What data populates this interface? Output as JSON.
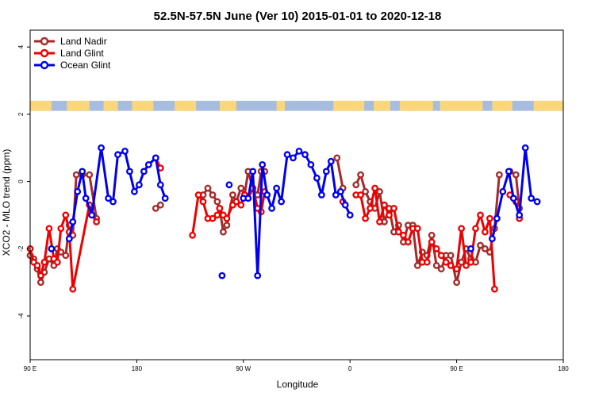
{
  "chart_data": {
    "type": "line",
    "title": "52.5N-57.5N June (Ver 10)   2015-01-01 to 2020-12-18",
    "xlabel": "Longitude",
    "ylabel": "XCO2 - MLO trend (ppm)",
    "x_ticks": [
      {
        "value": 90,
        "label": "90 E"
      },
      {
        "value": 180,
        "label": "180"
      },
      {
        "value": 270,
        "label": "90 W"
      },
      {
        "value": 360,
        "label": "0"
      },
      {
        "value": 450,
        "label": "90 E"
      },
      {
        "value": 540,
        "label": "180"
      }
    ],
    "y_ticks": [
      {
        "value": -4,
        "label": "-4"
      },
      {
        "value": -2,
        "label": "-2"
      },
      {
        "value": 0,
        "label": "0"
      },
      {
        "value": 2,
        "label": "2"
      },
      {
        "value": 4,
        "label": "4"
      }
    ],
    "xlim": [
      90,
      540
    ],
    "ylim": [
      -5.3,
      4.5
    ],
    "grid": false,
    "legend_position": "top-left",
    "land_mask_strip": {
      "y_range": [
        2.1,
        2.4
      ],
      "ocean_color": "#a6bde0",
      "land_color": "#fcd67a"
    },
    "series": [
      {
        "name": "Land Nadir",
        "color": "#a52a2a",
        "segments": [
          [
            [
              90,
              -2.2
            ],
            [
              93,
              -2.3
            ],
            [
              96,
              -2.6
            ],
            [
              99,
              -3.0
            ],
            [
              102,
              -2.7
            ],
            [
              106,
              -2.3
            ],
            [
              110,
              -2.5
            ],
            [
              113,
              -2.0
            ],
            [
              116,
              -2.1
            ],
            [
              120,
              -2.2
            ],
            [
              123,
              -1.3
            ],
            [
              126,
              -1.6
            ],
            [
              129,
              0.2
            ],
            [
              134,
              0.2
            ],
            [
              140,
              0.2
            ],
            [
              146,
              -1.1
            ]
          ],
          [
            [
              196,
              -0.8
            ],
            [
              200,
              -0.7
            ]
          ],
          [
            [
              236,
              -0.4
            ],
            [
              240,
              -0.2
            ],
            [
              244,
              -0.4
            ],
            [
              248,
              -0.6
            ],
            [
              250,
              -0.8
            ],
            [
              253,
              -1.5
            ],
            [
              256,
              -1.3
            ],
            [
              261,
              -0.4
            ],
            [
              264,
              -0.6
            ],
            [
              268,
              -0.2
            ],
            [
              271,
              -0.4
            ],
            [
              274,
              0.3
            ],
            [
              278,
              -0.2
            ],
            [
              282,
              -0.4
            ],
            [
              285,
              0.3
            ],
            [
              288,
              0.3
            ]
          ],
          [
            [
              349,
              0.7
            ],
            [
              354,
              -0.2
            ]
          ],
          [
            [
              365,
              -0.1
            ],
            [
              369,
              0.2
            ],
            [
              373,
              -0.3
            ],
            [
              377,
              -0.6
            ],
            [
              381,
              -0.8
            ],
            [
              385,
              -0.3
            ],
            [
              389,
              -1.2
            ],
            [
              393,
              -0.8
            ],
            [
              397,
              -1.5
            ],
            [
              401,
              -1.3
            ],
            [
              405,
              -1.8
            ],
            [
              409,
              -1.3
            ],
            [
              413,
              -1.3
            ],
            [
              417,
              -2.5
            ],
            [
              421,
              -2.1
            ],
            [
              425,
              -2.2
            ],
            [
              429,
              -1.6
            ],
            [
              433,
              -2.5
            ],
            [
              437,
              -2.6
            ],
            [
              441,
              -2.2
            ],
            [
              445,
              -2.2
            ],
            [
              450,
              -3.0
            ],
            [
              454,
              -2.4
            ],
            [
              458,
              -2.0
            ],
            [
              462,
              -2.3
            ],
            [
              466,
              -2.4
            ],
            [
              470,
              -1.9
            ],
            [
              474,
              -2.0
            ],
            [
              478,
              -2.1
            ],
            [
              482,
              -1.4
            ],
            [
              486,
              0.2
            ]
          ],
          [
            [
              495,
              0.3
            ],
            [
              500,
              0.2
            ],
            [
              503,
              -0.8
            ]
          ]
        ]
      },
      {
        "name": "Land Glint",
        "color": "#ee0000",
        "segments": [
          [
            [
              90,
              -2.0
            ],
            [
              93,
              -2.4
            ],
            [
              96,
              -2.5
            ],
            [
              99,
              -2.8
            ],
            [
              102,
              -2.4
            ],
            [
              106,
              -1.4
            ],
            [
              110,
              -2.3
            ],
            [
              113,
              -2.4
            ],
            [
              116,
              -1.4
            ],
            [
              120,
              -1.0
            ],
            [
              123,
              -1.5
            ],
            [
              126,
              -3.2
            ],
            [
              140,
              -0.7
            ],
            [
              146,
              -1.2
            ]
          ],
          [
            [
              196,
              0.7
            ],
            [
              200,
              0.4
            ]
          ],
          [
            [
              227,
              -1.6
            ],
            [
              232,
              -0.4
            ],
            [
              236,
              -0.6
            ],
            [
              240,
              -1.1
            ],
            [
              244,
              -1.1
            ],
            [
              248,
              -1.0
            ],
            [
              250,
              -0.8
            ],
            [
              253,
              -1.0
            ],
            [
              256,
              -1.1
            ],
            [
              261,
              -0.7
            ],
            [
              264,
              -0.6
            ],
            [
              268,
              -0.7
            ],
            [
              271,
              -0.4
            ],
            [
              274,
              -0.5
            ],
            [
              278,
              -0.2
            ],
            [
              282,
              -0.8
            ],
            [
              285,
              -0.9
            ],
            [
              288,
              -0.3
            ]
          ],
          [
            [
              354,
              -0.6
            ]
          ],
          [
            [
              365,
              -0.4
            ],
            [
              369,
              -0.4
            ],
            [
              373,
              -1.1
            ],
            [
              377,
              -0.8
            ],
            [
              381,
              -0.2
            ],
            [
              385,
              -1.2
            ],
            [
              389,
              -0.7
            ],
            [
              393,
              -1.0
            ],
            [
              397,
              -0.8
            ],
            [
              401,
              -1.5
            ],
            [
              405,
              -1.6
            ],
            [
              409,
              -1.8
            ],
            [
              413,
              -1.4
            ],
            [
              417,
              -1.4
            ],
            [
              421,
              -2.4
            ],
            [
              425,
              -2.4
            ],
            [
              429,
              -1.8
            ],
            [
              433,
              -2.0
            ],
            [
              437,
              -2.2
            ],
            [
              441,
              -2.4
            ],
            [
              445,
              -2.5
            ],
            [
              450,
              -2.6
            ],
            [
              454,
              -1.4
            ],
            [
              458,
              -2.5
            ],
            [
              462,
              -2.4
            ],
            [
              466,
              -1.4
            ],
            [
              470,
              -1.0
            ],
            [
              474,
              -1.5
            ],
            [
              478,
              -1.1
            ],
            [
              482,
              -3.2
            ]
          ],
          [
            [
              495,
              -0.4
            ],
            [
              500,
              -0.6
            ],
            [
              503,
              -1.1
            ]
          ]
        ]
      },
      {
        "name": "Ocean Glint",
        "color": "#0000ee",
        "segments": [
          [
            [
              108,
              -2.0
            ]
          ],
          [
            [
              123,
              -1.7
            ],
            [
              126,
              -1.2
            ],
            [
              130,
              -0.3
            ],
            [
              134,
              0.3
            ],
            [
              137,
              -0.5
            ],
            [
              142,
              -1.0
            ],
            [
              150,
              1.0
            ],
            [
              156,
              -0.5
            ],
            [
              160,
              -0.6
            ],
            [
              164,
              0.8
            ],
            [
              170,
              0.9
            ],
            [
              174,
              0.3
            ],
            [
              178,
              -0.3
            ],
            [
              182,
              -0.1
            ],
            [
              186,
              0.3
            ],
            [
              190,
              0.5
            ],
            [
              196,
              0.7
            ],
            [
              200,
              -0.1
            ],
            [
              204,
              -0.5
            ]
          ],
          [
            [
              252,
              -2.8
            ]
          ],
          [
            [
              258,
              -0.1
            ]
          ],
          [
            [
              270,
              -0.5
            ],
            [
              274,
              -0.5
            ],
            [
              278,
              0.3
            ],
            [
              282,
              -2.8
            ],
            [
              286,
              0.5
            ],
            [
              290,
              -0.4
            ],
            [
              294,
              -0.8
            ],
            [
              298,
              -0.2
            ],
            [
              302,
              -0.6
            ],
            [
              307,
              0.8
            ],
            [
              312,
              0.7
            ],
            [
              317,
              0.9
            ],
            [
              322,
              0.8
            ],
            [
              327,
              0.5
            ],
            [
              332,
              0.1
            ],
            [
              336,
              -0.4
            ],
            [
              340,
              0.3
            ],
            [
              344,
              0.6
            ],
            [
              348,
              -0.4
            ],
            [
              352,
              -0.3
            ],
            [
              356,
              -0.7
            ],
            [
              360,
              -1.0
            ]
          ],
          [
            [
              462,
              -2.0
            ]
          ],
          [
            [
              480,
              -1.7
            ],
            [
              484,
              -1.1
            ],
            [
              489,
              -0.3
            ],
            [
              494,
              0.3
            ],
            [
              498,
              -0.5
            ],
            [
              503,
              -1.0
            ],
            [
              508,
              1.0
            ],
            [
              513,
              -0.5
            ],
            [
              518,
              -0.6
            ]
          ]
        ]
      }
    ]
  }
}
